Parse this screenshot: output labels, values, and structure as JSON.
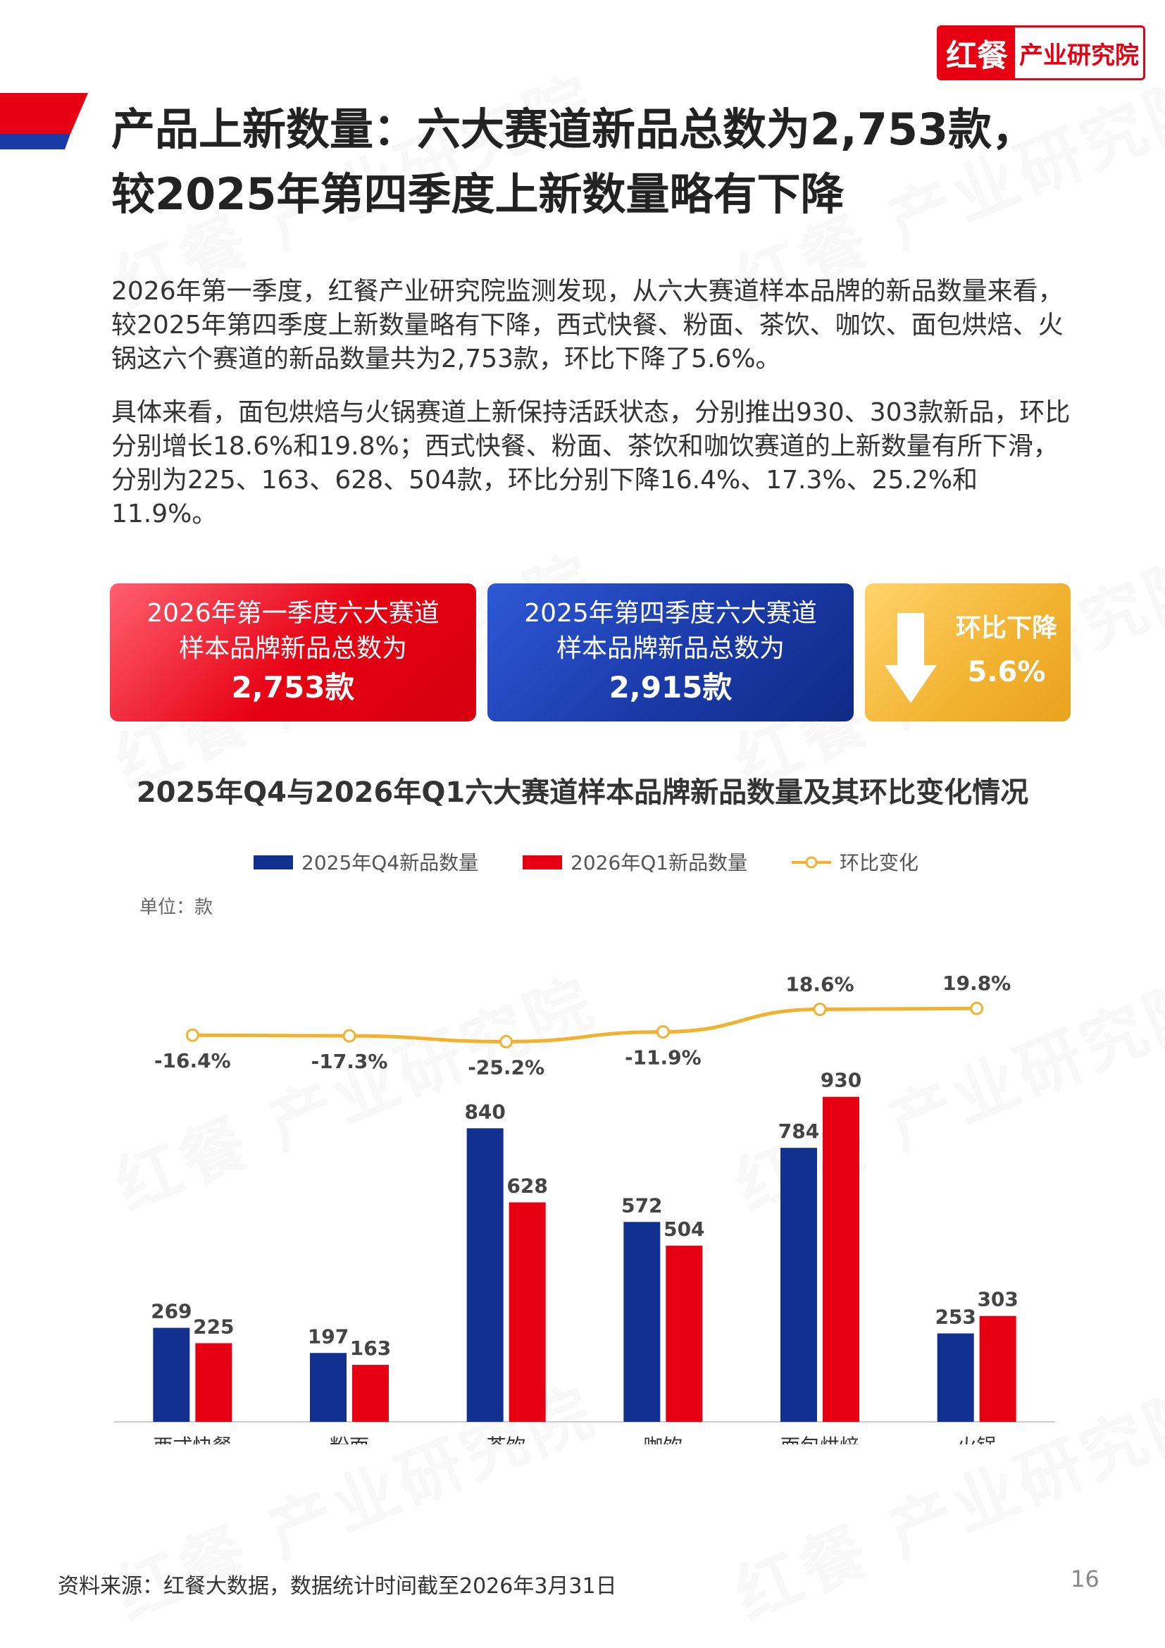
{
  "logo": {
    "brand": "红餐",
    "institute": "产业研究院"
  },
  "watermark": "红餐 产业研究院",
  "title_lines": [
    "产品上新数量：六大赛道新品总数为2,753款，",
    "较2025年第四季度上新数量略有下降"
  ],
  "paragraphs": [
    "2026年第一季度，红餐产业研究院监测发现，从六大赛道样本品牌的新品数量来看，较2025年第四季度上新数量略有下降，西式快餐、粉面、茶饮、咖饮、面包烘焙、火锅这六个赛道的新品数量共为2,753款，环比下降了5.6%。",
    "具体来看，面包烘焙与火锅赛道上新保持活跃状态，分别推出930、303款新品，环比分别增长18.6%和19.8%；西式快餐、粉面、茶饮和咖饮赛道的上新数量有所下滑，分别为225、163、628、504款，环比分别下降16.4%、17.3%、25.2%和11.9%。"
  ],
  "cards": {
    "q1": {
      "label": "2026年第一季度六大赛道样本品牌新品总数为",
      "value": "2,753款",
      "color": "#e60012"
    },
    "q4": {
      "label": "2025年第四季度六大赛道样本品牌新品总数为",
      "value": "2,915款",
      "color": "#1a3aa8"
    },
    "change": {
      "label": "环比下降",
      "value": "5.6%",
      "icon": "down-arrow-icon",
      "color": "#f2b230"
    }
  },
  "chart_data": {
    "type": "bar",
    "title": "2025年Q4与2026年Q1六大赛道样本品牌新品数量及其环比变化情况",
    "unit": "单位：款",
    "categories": [
      "西式快餐",
      "粉面",
      "茶饮",
      "咖饮",
      "面包烘焙",
      "火锅"
    ],
    "series": [
      {
        "name": "2025年Q4新品数量",
        "type": "bar",
        "color": "#12308f",
        "values": [
          269,
          197,
          840,
          572,
          784,
          253
        ]
      },
      {
        "name": "2026年Q1新品数量",
        "type": "bar",
        "color": "#e60012",
        "values": [
          225,
          163,
          628,
          504,
          930,
          303
        ]
      },
      {
        "name": "环比变化",
        "type": "line",
        "color": "#f2b230",
        "values": [
          -16.4,
          -17.3,
          -25.2,
          -11.9,
          18.6,
          19.8
        ],
        "labels": [
          "-16.4%",
          "-17.3%",
          "-25.2%",
          "-11.9%",
          "18.6%",
          "19.8%"
        ]
      }
    ],
    "legend_position": "top-center",
    "grid": false
  },
  "source": "资料来源：红餐大数据，数据统计时间截至2026年3月31日",
  "page_number": "16"
}
